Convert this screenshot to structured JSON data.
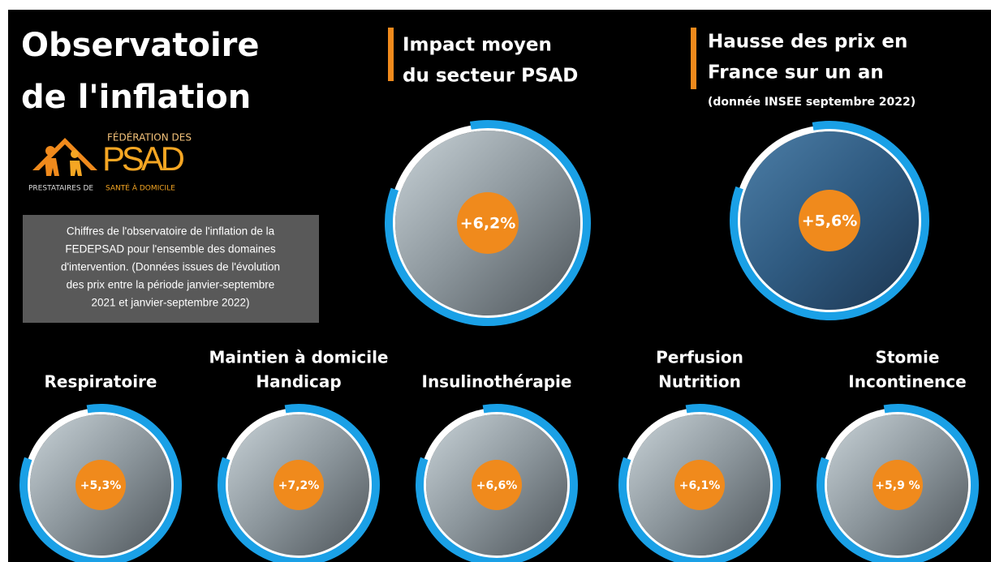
{
  "title": {
    "lines": [
      "Observatoire",
      "de l'inflation"
    ]
  },
  "logo": {
    "top": "FÉDÉRATION DES",
    "name": "PSAD",
    "bottom_1": "PRESTATAIRES DE",
    "bottom_2": "SANTÉ À DOMICILE"
  },
  "note": {
    "lines": [
      "Chiffres de l'observatoire de l'inflation de la",
      "FEDEPSAD pour l'ensemble des domaines",
      "d'intervention. (Données issues de l'évolution",
      "des prix entre la période janvier-septembre",
      "2021 et janvier-septembre 2022)"
    ]
  },
  "highlights": [
    {
      "title_lines": [
        "Impact moyen",
        "du secteur PSAD"
      ],
      "value": "+6,2%"
    },
    {
      "title_lines": [
        "Hausse des prix en",
        "France sur un an"
      ],
      "subtitle": "(donnée INSEE septembre 2022)",
      "value": "+5,6%"
    }
  ],
  "domains": [
    {
      "title_lines": [
        "Respiratoire"
      ],
      "value": "+5,3%"
    },
    {
      "title_lines": [
        "Maintien à domicile",
        "Handicap"
      ],
      "value": "+7,2%"
    },
    {
      "title_lines": [
        "Insulinothérapie"
      ],
      "value": "+6,6%"
    },
    {
      "title_lines": [
        "Perfusion",
        "Nutrition"
      ],
      "value": "+6,1%"
    },
    {
      "title_lines": [
        "Stomie",
        "Incontinence"
      ],
      "value": "+5,9 %"
    }
  ]
}
